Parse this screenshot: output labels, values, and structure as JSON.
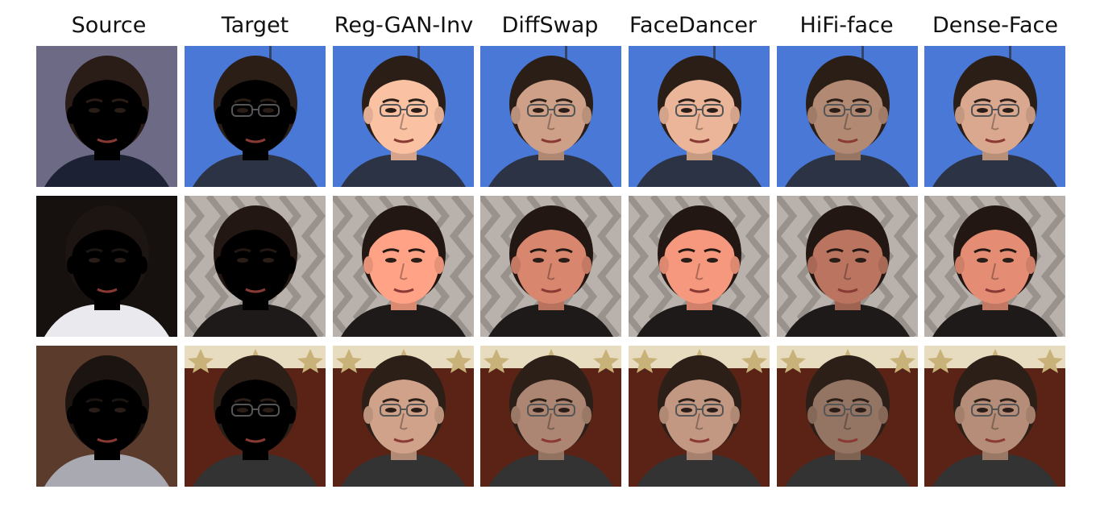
{
  "headers": [
    "Source",
    "Target",
    "Reg-GAN-Inv",
    "DiffSwap",
    "FaceDancer",
    "HiFi-face",
    "Dense-Face"
  ],
  "scenes": {
    "row1": {
      "bg": "#4a78d6",
      "bg2": "#3c66c4",
      "skin": "#d9a88e",
      "hair": "#2a1e17",
      "shirt": "#2c3344"
    },
    "row2": {
      "bg": "#b9b2ac",
      "bg2": "#8c857f",
      "skin": "#e48d74",
      "hair": "#231713",
      "shirt": "#1e1a1a"
    },
    "row3": {
      "bg": "#5a2316",
      "bg2": "#7a3320",
      "skin": "#b58d78",
      "hair": "#2b1f18",
      "shirt": "#333"
    }
  },
  "sources": {
    "row1": {
      "bg": "#6d6a86",
      "skin": "#e0a894",
      "hair": "#2a1c16",
      "shirt": "#1c2233"
    },
    "row2": {
      "bg": "#16110f",
      "skin": "#f0d8d0",
      "hair": "#1d1512",
      "shirt": "#e9e9ee"
    },
    "row3": {
      "bg": "#5b3b2b",
      "skin": "#b0856d",
      "hair": "#1b1410",
      "shirt": "#a9a9b2"
    }
  }
}
